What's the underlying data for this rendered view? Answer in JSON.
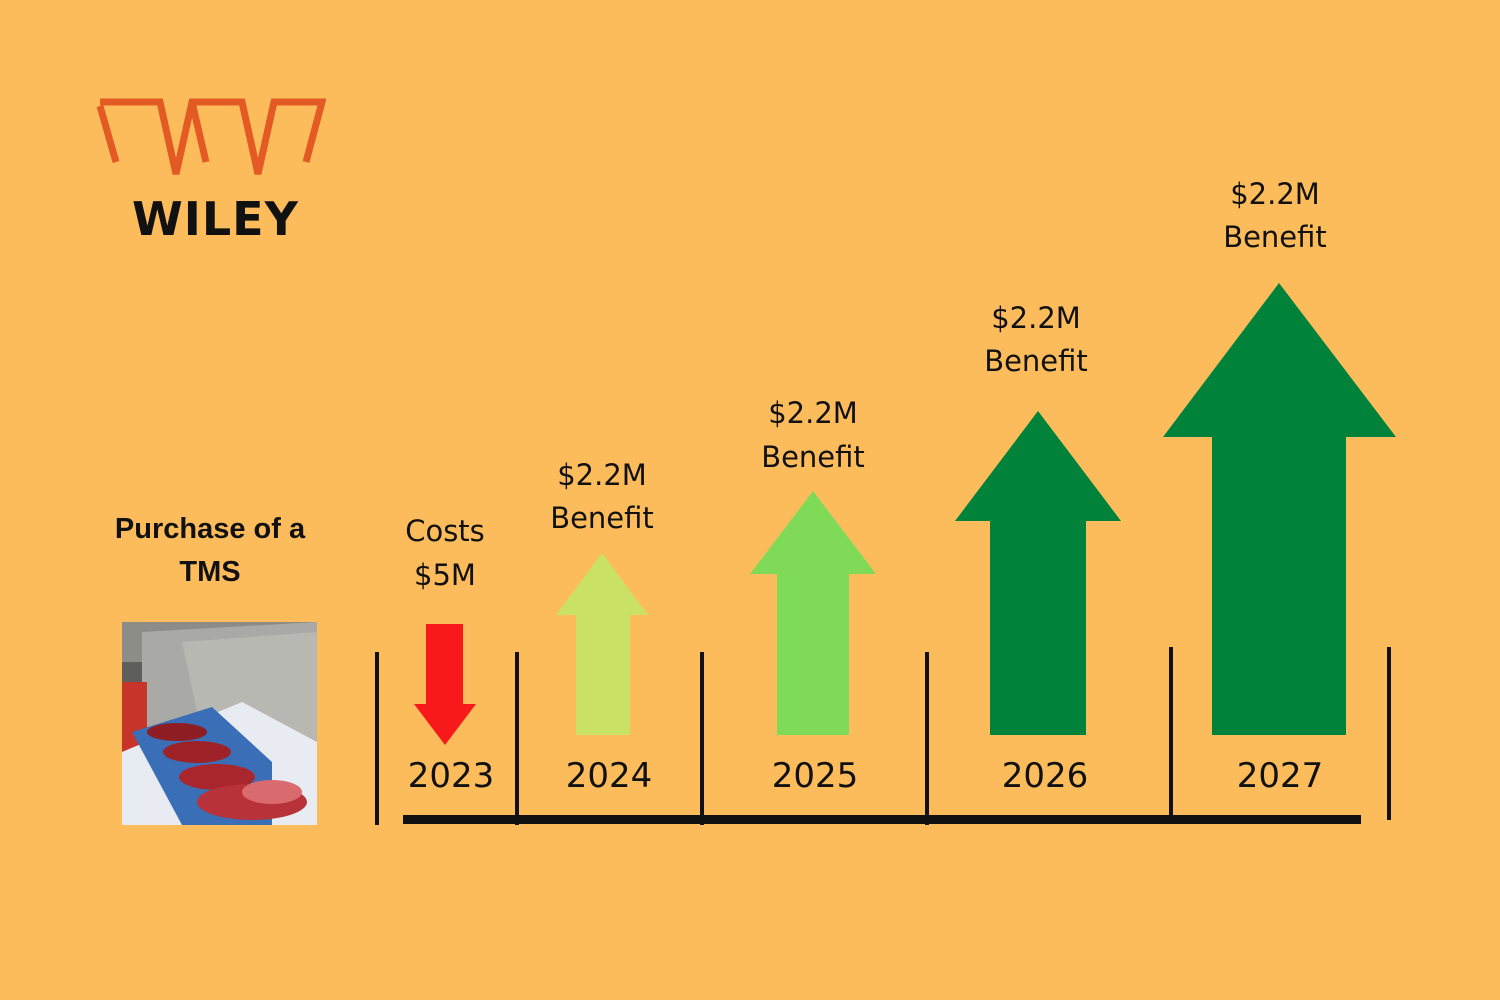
{
  "brand": {
    "name": "WILEY",
    "logo_color": "#E35A24"
  },
  "purchase": {
    "title": "Purchase of a TMS",
    "image": "meat-processing-line-photo"
  },
  "timeline": {
    "years": [
      {
        "year": "2023",
        "direction": "down",
        "label_lines": [
          "Costs",
          "$5M"
        ],
        "color": "#F8191A"
      },
      {
        "year": "2024",
        "direction": "up",
        "label_lines": [
          "$2.2M",
          "Benefit"
        ],
        "color": "#C9E265"
      },
      {
        "year": "2025",
        "direction": "up",
        "label_lines": [
          "$2.2M",
          "Benefit"
        ],
        "color": "#7FDA57"
      },
      {
        "year": "2026",
        "direction": "up",
        "label_lines": [
          "$2.2M",
          "Benefit"
        ],
        "color": "#00823A"
      },
      {
        "year": "2027",
        "direction": "up",
        "label_lines": [
          "$2.2M",
          "Benefit"
        ],
        "color": "#00823A"
      }
    ]
  }
}
